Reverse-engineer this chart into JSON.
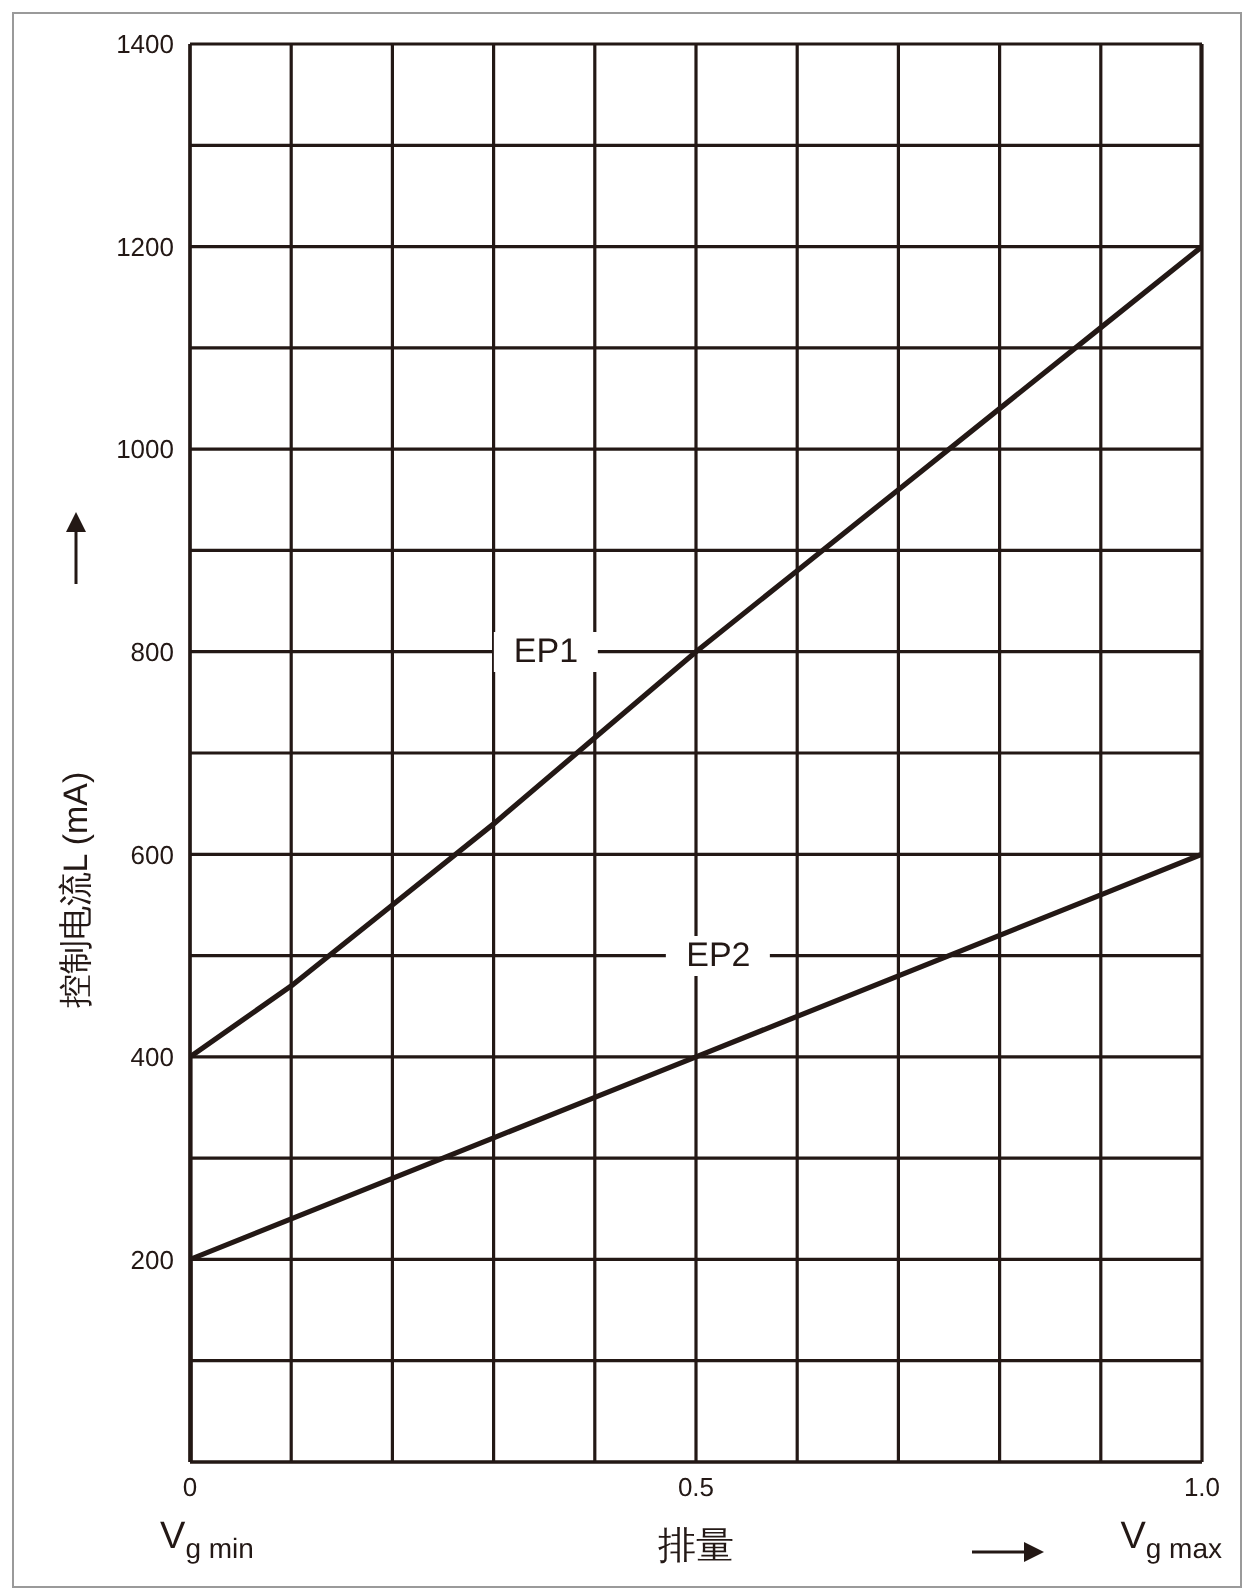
{
  "chart_data": {
    "type": "line",
    "xlabel": "排量",
    "ylabel": "控制电流L (mA)",
    "xlim": [
      0,
      1
    ],
    "ylim": [
      0,
      1400
    ],
    "xticks": [
      0,
      {
        "value": 0.1,
        "label": null
      },
      {
        "value": 0.2,
        "label": null
      },
      {
        "value": 0.3,
        "label": null
      },
      {
        "value": 0.4,
        "label": null
      },
      0.5,
      {
        "value": 0.6,
        "label": null
      },
      {
        "value": 0.7,
        "label": null
      },
      {
        "value": 0.8,
        "label": null
      },
      {
        "value": 0.9,
        "label": null
      },
      {
        "value": 1,
        "label": "1.0"
      }
    ],
    "yticks": [
      {
        "value": 0,
        "label": null
      },
      {
        "value": 100,
        "label": null
      },
      200,
      {
        "value": 300,
        "label": null
      },
      400,
      {
        "value": 500,
        "label": null
      },
      600,
      {
        "value": 700,
        "label": null
      },
      800,
      {
        "value": 900,
        "label": null
      },
      1000,
      {
        "value": 1100,
        "label": null
      },
      1200,
      {
        "value": 1300,
        "label": null
      },
      1400
    ],
    "grid": true,
    "marker": "none",
    "line_style": "solid",
    "series": [
      {
        "name": "EP1",
        "color": "#231815",
        "x": [
          0,
          0,
          0.1,
          0.2,
          0.3,
          0.4,
          0.5,
          0.6,
          0.7,
          0.8,
          0.9,
          1,
          1
        ],
        "values": [
          0,
          400,
          470,
          550,
          630,
          715,
          800,
          880,
          960,
          1040,
          1120,
          1200,
          1400
        ]
      },
      {
        "name": "EP2",
        "color": "#231815",
        "x": [
          0,
          0,
          0.1,
          0.2,
          0.3,
          0.4,
          0.5,
          0.6,
          0.7,
          0.8,
          0.9,
          1,
          1
        ],
        "values": [
          0,
          200,
          240,
          280,
          320,
          360,
          400,
          440,
          480,
          520,
          560,
          600,
          800
        ]
      }
    ],
    "annotations": [
      "V$_{g min}$",
      "V$_{g max}$"
    ]
  }
}
